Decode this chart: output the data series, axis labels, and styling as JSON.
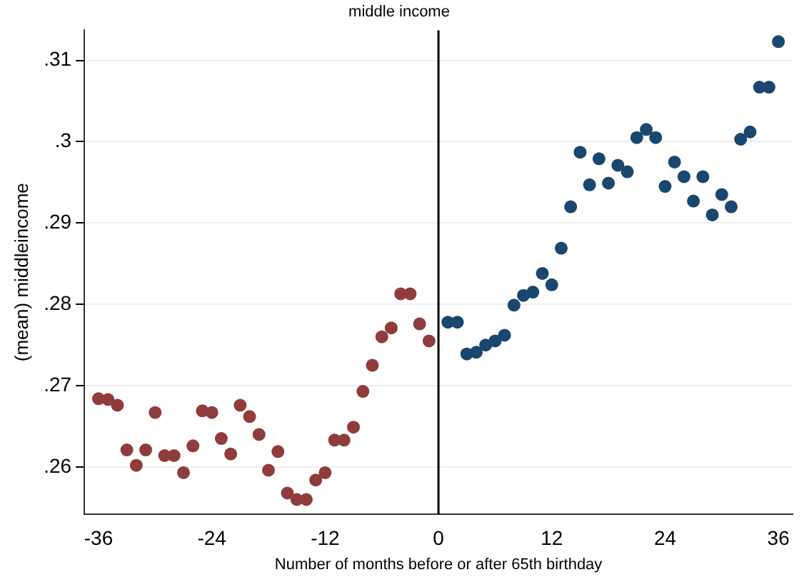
{
  "chart_data": {
    "type": "scatter",
    "title": "middle income",
    "xlabel": "Number of months before or after 65th birthday",
    "ylabel": "(mean) middleincome",
    "xlim": [
      -37.5,
      37.5
    ],
    "xticks": [
      -36,
      -24,
      -12,
      0,
      12,
      24,
      36
    ],
    "ylim": [
      0.2542,
      0.3137
    ],
    "yticks": [
      {
        "value": 0.26,
        "label": ".26"
      },
      {
        "value": 0.27,
        "label": ".27"
      },
      {
        "value": 0.28,
        "label": ".28"
      },
      {
        "value": 0.29,
        "label": ".29"
      },
      {
        "value": 0.3,
        "label": ".3"
      },
      {
        "value": 0.31,
        "label": ".31"
      }
    ],
    "grid": "y",
    "legend": false,
    "marker": "circle",
    "ref_lines": [
      {
        "axis": "x",
        "value": 0,
        "label": null,
        "color": "#000000"
      }
    ],
    "series": [
      {
        "color": "#903c3c",
        "x": [
          -36,
          -35,
          -34,
          -33,
          -32,
          -31,
          -30,
          -29,
          -28,
          -27,
          -26,
          -25,
          -24,
          -23,
          -22,
          -21,
          -20,
          -19,
          -18,
          -17,
          -16,
          -15,
          -14,
          -13,
          -12,
          -11,
          -10,
          -9,
          -8,
          -7,
          -6,
          -5,
          -4,
          -3,
          -2,
          -1
        ],
        "values": [
          0.2684,
          0.2683,
          0.2676,
          0.2621,
          0.2602,
          0.2621,
          0.2667,
          0.2614,
          0.2614,
          0.2593,
          0.2626,
          0.2669,
          0.2667,
          0.2635,
          0.2616,
          0.2676,
          0.2662,
          0.264,
          0.2596,
          0.2619,
          0.2568,
          0.256,
          0.256,
          0.2584,
          0.2593,
          0.2633,
          0.2633,
          0.2649,
          0.2693,
          0.2725,
          0.276,
          0.2771,
          0.2813,
          0.2813,
          0.2776,
          0.2755
        ]
      },
      {
        "color": "#1a476f",
        "x": [
          1,
          2,
          3,
          4,
          5,
          6,
          7,
          8,
          9,
          10,
          11,
          12,
          13,
          14,
          15,
          16,
          17,
          18,
          19,
          20,
          21,
          22,
          23,
          24,
          25,
          26,
          27,
          28,
          29,
          30,
          31,
          32,
          33,
          34,
          35,
          36
        ],
        "values": [
          0.2778,
          0.2778,
          0.2739,
          0.2741,
          0.275,
          0.2755,
          0.2762,
          0.2799,
          0.2811,
          0.2815,
          0.2838,
          0.2824,
          0.2869,
          0.292,
          0.2987,
          0.2947,
          0.2979,
          0.2949,
          0.2971,
          0.2963,
          0.3005,
          0.3015,
          0.3005,
          0.2945,
          0.2975,
          0.2957,
          0.2927,
          0.2957,
          0.291,
          0.2935,
          0.292,
          0.3003,
          0.3012,
          0.3067,
          0.3067,
          0.3123
        ]
      }
    ]
  }
}
